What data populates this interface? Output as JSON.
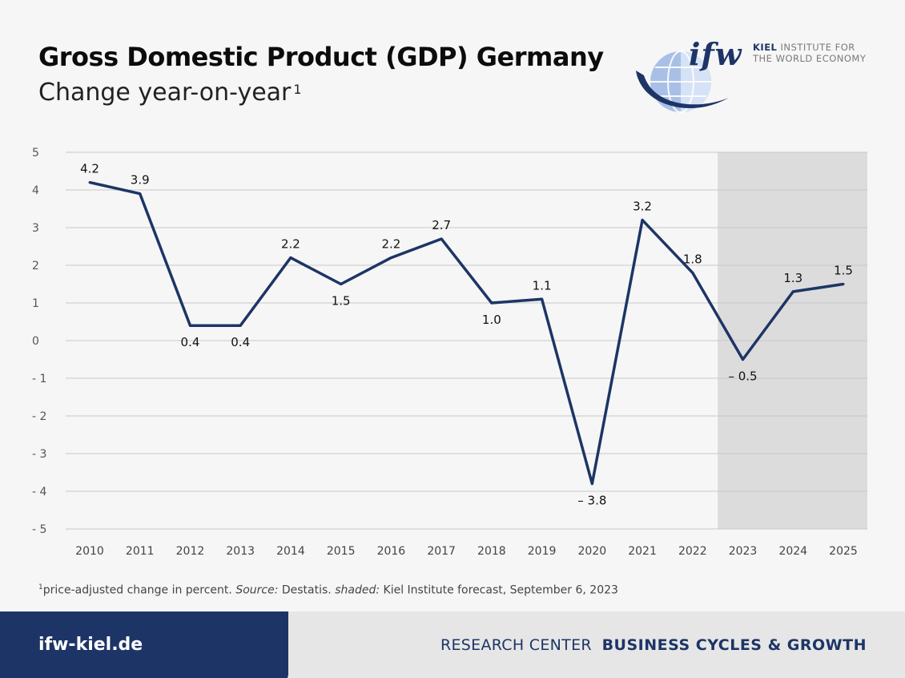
{
  "header": {
    "title": "Gross Domestic Product (GDP) Germany",
    "subtitle": "Change year-on-year",
    "subtitle_sup": "1"
  },
  "logo": {
    "wordmark": "ifw",
    "line1_bold": "KIEL",
    "line1_rest": " INSTITUTE FOR",
    "line2": "THE WORLD ECONOMY"
  },
  "footnote": {
    "sup": "1",
    "text1": "price-adjusted change in percent. ",
    "source_label": "Source:",
    "text2": " Destatis. ",
    "shaded_label": "shaded:",
    "text3": " Kiel Institute forecast, September 6, 2023"
  },
  "footer": {
    "link": "ifw-kiel.de",
    "research_center": "RESEARCH CENTER",
    "division": "BUSINESS CYCLES & GROWTH"
  },
  "colors": {
    "line": "#1d3566",
    "shade": "#dcdcdc",
    "grid": "#c8c8c8",
    "footer_dark": "#1d3566"
  },
  "chart_data": {
    "type": "line",
    "x": [
      "2010",
      "2011",
      "2012",
      "2013",
      "2014",
      "2015",
      "2016",
      "2017",
      "2018",
      "2019",
      "2020",
      "2021",
      "2022",
      "2023",
      "2024",
      "2025"
    ],
    "series": [
      {
        "values": [
          4.2,
          3.9,
          0.4,
          0.4,
          2.2,
          1.5,
          2.2,
          2.7,
          1.0,
          1.1,
          -3.8,
          3.2,
          1.8,
          -0.5,
          1.3,
          1.5
        ]
      }
    ],
    "data_labels": [
      "4.2",
      "3.9",
      "0.4",
      "0.4",
      "2.2",
      "1.5",
      "2.2",
      "2.7",
      "1.0",
      "1.1",
      "– 3.8",
      "3.2",
      "1.8",
      "– 0.5",
      "1.3",
      "1.5"
    ],
    "label_positions": [
      "above",
      "above",
      "below",
      "below",
      "above",
      "below",
      "above",
      "above",
      "below",
      "above",
      "below",
      "above",
      "above",
      "below",
      "above",
      "above"
    ],
    "y_ticks": [
      5,
      4,
      3,
      2,
      1,
      0,
      -1,
      -2,
      -3,
      -4,
      -5
    ],
    "y_tick_labels": [
      "5",
      "4",
      "3",
      "2",
      "1",
      "0",
      "- 1",
      "- 2",
      "- 3",
      "- 4",
      "- 5"
    ],
    "ylim": [
      -5,
      5
    ],
    "shaded_forecast": [
      "2023",
      "2025"
    ],
    "grid": true,
    "title": "Gross Domestic Product (GDP) Germany"
  }
}
